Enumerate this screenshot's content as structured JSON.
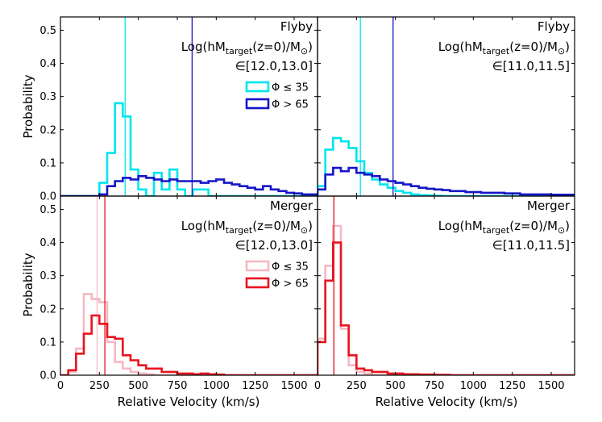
{
  "chart_data": {
    "type": "histogram-grid",
    "xlabel": "Relative Velocity (km/s)",
    "ylabel": "Probability",
    "xlim": [
      0,
      1650
    ],
    "ylim": [
      0,
      0.54
    ],
    "xticks": [
      0,
      250,
      500,
      750,
      1000,
      1250,
      1500
    ],
    "xtick_labels": [
      "0",
      "250",
      "500",
      "750",
      "1000",
      "1250",
      "1500"
    ],
    "yticks": [
      0.0,
      0.1,
      0.2,
      0.3,
      0.4,
      0.5
    ],
    "ytick_labels": [
      "0.0",
      "0.1",
      "0.2",
      "0.3",
      "0.4",
      "0.5"
    ],
    "bin_width": 50,
    "panels": [
      {
        "id": "flyby-high",
        "event": "Flyby",
        "mass_line": "Log(hM_target(z=0)/M_⊙)",
        "mass_range": "∈[12.0,13.0]",
        "legend": [
          {
            "label": "Φ ≤ 35",
            "color": "#00e5ee"
          },
          {
            "label": "Φ > 65",
            "color": "#1515c8"
          }
        ],
        "series": [
          {
            "name": "Φ ≤ 35",
            "color": "#00e5ee",
            "median": 415,
            "values": [
              0,
              0,
              0,
              0,
              0,
              0.04,
              0.13,
              0.28,
              0.24,
              0.08,
              0.02,
              0,
              0.07,
              0.02,
              0.08,
              0.02,
              0,
              0.02,
              0.02,
              0,
              0,
              0,
              0,
              0,
              0,
              0,
              0,
              0,
              0,
              0,
              0,
              0,
              0
            ]
          },
          {
            "name": "Φ > 65",
            "color": "#1515c8",
            "median": 845,
            "values": [
              0,
              0,
              0,
              0,
              0,
              0.005,
              0.03,
              0.045,
              0.055,
              0.05,
              0.06,
              0.055,
              0.05,
              0.045,
              0.05,
              0.045,
              0.045,
              0.045,
              0.04,
              0.045,
              0.05,
              0.04,
              0.035,
              0.03,
              0.025,
              0.02,
              0.03,
              0.02,
              0.015,
              0.01,
              0.008,
              0.005,
              0.005
            ]
          }
        ]
      },
      {
        "id": "flyby-low",
        "event": "Flyby",
        "mass_line": "Log(hM_target(z=0)/M_⊙)",
        "mass_range": "∈[11.0,11.5]",
        "legend": [],
        "series": [
          {
            "name": "Φ ≤ 35",
            "color": "#00e5ee",
            "median": 275,
            "values": [
              0.03,
              0.14,
              0.175,
              0.165,
              0.145,
              0.105,
              0.07,
              0.05,
              0.035,
              0.025,
              0.015,
              0.01,
              0.005,
              0.003,
              0.002,
              0.001,
              0,
              0,
              0,
              0,
              0,
              0,
              0,
              0,
              0,
              0,
              0,
              0,
              0,
              0,
              0,
              0,
              0
            ]
          },
          {
            "name": "Φ > 65",
            "color": "#1515c8",
            "median": 485,
            "values": [
              0.02,
              0.065,
              0.085,
              0.075,
              0.085,
              0.07,
              0.065,
              0.06,
              0.05,
              0.045,
              0.04,
              0.035,
              0.03,
              0.025,
              0.022,
              0.02,
              0.018,
              0.015,
              0.015,
              0.012,
              0.012,
              0.01,
              0.01,
              0.01,
              0.008,
              0.008,
              0.005,
              0.005,
              0.005,
              0.005,
              0.004,
              0.004,
              0.004
            ]
          }
        ]
      },
      {
        "id": "merger-high",
        "event": "Merger",
        "mass_line": "Log(hM_target(z=0)/M_⊙)",
        "mass_range": "∈[12.0,13.0]",
        "legend": [
          {
            "label": "Φ ≤ 35",
            "color": "#f5b8c4"
          },
          {
            "label": "Φ > 65",
            "color": "#e8141e"
          }
        ],
        "series": [
          {
            "name": "Φ ≤ 35",
            "color": "#f5b8c4",
            "median": 235,
            "values": [
              0,
              0.01,
              0.08,
              0.245,
              0.23,
              0.22,
              0.1,
              0.04,
              0.02,
              0.01,
              0.005,
              0.003,
              0,
              0,
              0,
              0,
              0,
              0,
              0,
              0,
              0,
              0,
              0,
              0,
              0,
              0,
              0,
              0,
              0,
              0,
              0,
              0,
              0
            ]
          },
          {
            "name": "Φ > 65",
            "color": "#e8141e",
            "median": 285,
            "values": [
              0,
              0.015,
              0.065,
              0.125,
              0.18,
              0.155,
              0.115,
              0.11,
              0.06,
              0.045,
              0.03,
              0.02,
              0.02,
              0.01,
              0.01,
              0.005,
              0.005,
              0.003,
              0.005,
              0.003,
              0.002,
              0,
              0,
              0,
              0,
              0,
              0,
              0,
              0,
              0,
              0,
              0,
              0
            ]
          }
        ]
      },
      {
        "id": "merger-low",
        "event": "Merger",
        "mass_line": "Log(hM_target(z=0)/M_⊙)",
        "mass_range": "∈[11.0,11.5]",
        "legend": [],
        "series": [
          {
            "name": "Φ ≤ 35",
            "color": "#f5b8c4",
            "median": 105,
            "values": [
              0.11,
              0.33,
              0.45,
              0.14,
              0.03,
              0.01,
              0.005,
              0,
              0,
              0,
              0,
              0,
              0,
              0,
              0,
              0,
              0,
              0,
              0,
              0,
              0,
              0,
              0,
              0,
              0,
              0,
              0,
              0,
              0,
              0,
              0,
              0,
              0
            ]
          },
          {
            "name": "Φ > 65",
            "color": "#e8141e",
            "median": 105,
            "values": [
              0.1,
              0.285,
              0.4,
              0.15,
              0.06,
              0.02,
              0.015,
              0.01,
              0.01,
              0.005,
              0.005,
              0.003,
              0.003,
              0.002,
              0.002,
              0.001,
              0.001,
              0,
              0,
              0,
              0,
              0,
              0,
              0,
              0,
              0,
              0,
              0,
              0,
              0,
              0,
              0,
              0
            ]
          }
        ]
      }
    ]
  }
}
